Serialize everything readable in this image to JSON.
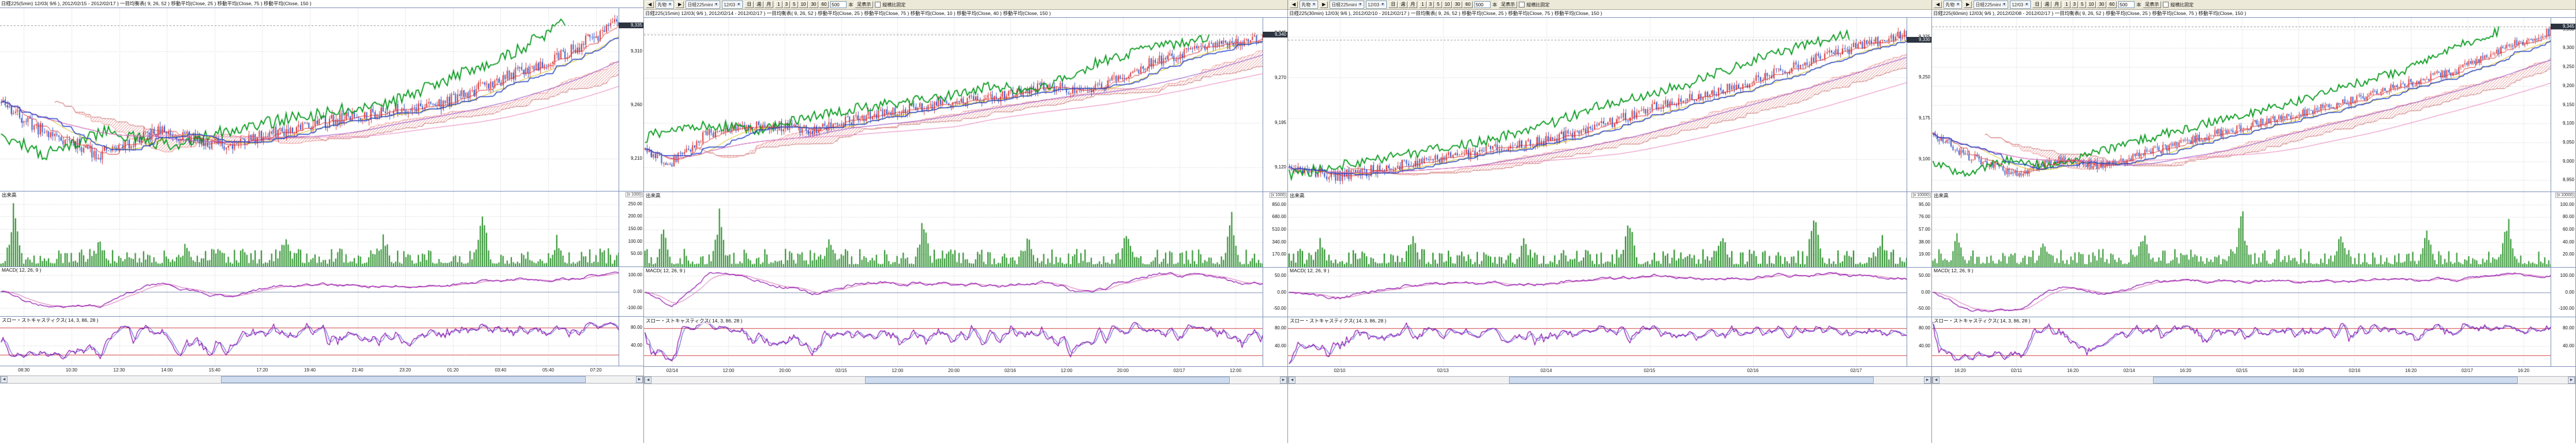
{
  "ui": {
    "dropdown_arrow": "▼",
    "scrollbar_left": "◀",
    "scrollbar_right": "▶"
  },
  "colors": {
    "up": "#d83838",
    "down": "#3858c8",
    "volume": "#1e8a1e",
    "ma25": "#d8b800",
    "ma75": "#9040c0",
    "ma150": "#e87ab8",
    "tenkan": "#e03030",
    "kijun": "#2040c8",
    "chikou": "#009818",
    "cloud": "#e08888",
    "senkou_a": "#f09090",
    "senkou_b": "#c87070",
    "macd": "#8800a8",
    "signal": "#d060b0",
    "stoch_k": "#8800a8",
    "stoch_d": "#3838c8",
    "guide": "#d04040",
    "grid": "#c8c8c8",
    "zero": "#8090b0",
    "last_line": "#909090"
  },
  "toolbar": {
    "prev_button": "◀",
    "category_select": "先物",
    "next_button": "▶",
    "instrument_select": "日経225mini",
    "contract_select": "12/03",
    "period_buttons": [
      "日",
      "週",
      "月"
    ],
    "minute_buttons": [
      "1",
      "3",
      "5",
      "10",
      "30",
      "60"
    ],
    "bars_count": "500",
    "bars_suffix": "本",
    "display_button": "足表示",
    "aspect_label": "縦横比固定"
  },
  "panels": [
    {
      "show_toolbar": false,
      "legend": "日経225(5min) 12/03( 9/6 ), 2012/02/15 - 2012/02/17 )  一目均衡表( 9, 26, 52 )  移動平均(Close, 25 )  移動平均(Close, 75 )  移動平均(Close, 150 )",
      "pane_labels": {
        "volume": "出来高",
        "macd": "MACD( 12, 26, 9 )",
        "stoch": "スロー・ストキャスティクス( 14, 3, 86, 28 )"
      },
      "chart_data": {
        "type": "candlestick",
        "bars": 300,
        "seed": 11,
        "noise": 6,
        "price_keyframes": [
          [
            0,
            9262
          ],
          [
            0.06,
            9238
          ],
          [
            0.16,
            9214
          ],
          [
            0.26,
            9236
          ],
          [
            0.36,
            9222
          ],
          [
            0.48,
            9240
          ],
          [
            0.6,
            9252
          ],
          [
            0.72,
            9262
          ],
          [
            0.82,
            9286
          ],
          [
            0.92,
            9310
          ],
          [
            1,
            9336
          ]
        ],
        "price_axis": {
          "min": 9180,
          "max": 9350,
          "ticks": [
            {
              "v": 9210,
              "label": "9,210"
            },
            {
              "v": 9260,
              "label": "9,260"
            },
            {
              "v": 9310,
              "label": "9,310"
            }
          ]
        },
        "last_price_label": "9,335",
        "volume_axis": {
          "labels": [
            "250.00",
            "200.00",
            "150.00",
            "100.00",
            "50.00"
          ],
          "unit": "(x 1000)"
        },
        "volume_spikes": [
          [
            0.02,
            0.92
          ],
          [
            0.16,
            0.45
          ],
          [
            0.3,
            0.4
          ],
          [
            0.46,
            0.55
          ],
          [
            0.62,
            0.5
          ],
          [
            0.78,
            0.88
          ],
          [
            0.9,
            0.5
          ]
        ],
        "macd_axis": {
          "labels": [
            "100.00",
            "0.00",
            "-100.00"
          ],
          "tick": 100
        },
        "stoch_axis": {
          "ticks": [
            80,
            40
          ],
          "labels": [
            "80.00",
            "40.00"
          ],
          "guides": [
            80,
            20
          ]
        },
        "x_labels": [
          "08:30",
          "10:30",
          "12:30",
          "14:00",
          "15:40",
          "17:20",
          "19:40",
          "21:40",
          "23:20",
          "01:20",
          "03:40",
          "05:40",
          "07:20"
        ]
      }
    },
    {
      "show_toolbar": true,
      "legend": "日経225(15min) 12/03( 9/6 ), 2012/02/14 - 2012/02/17 )  一目均衡表( 9, 26, 52 )  移動平均(Close, 25 )  移動平均(Close, 75 )  移動平均(Close, 10 )  移動平均(Close, 40 )  移動平均(Close, 150 )",
      "pane_labels": {
        "volume": "出来高",
        "macd": "MACD( 12, 26, 9 )",
        "stoch": "スロー・ストキャスティクス( 14, 3, 86, 28 )"
      },
      "chart_data": {
        "type": "candlestick",
        "bars": 300,
        "seed": 22,
        "noise": 9,
        "price_keyframes": [
          [
            0,
            9150
          ],
          [
            0.04,
            9128
          ],
          [
            0.1,
            9176
          ],
          [
            0.18,
            9192
          ],
          [
            0.27,
            9184
          ],
          [
            0.36,
            9206
          ],
          [
            0.46,
            9224
          ],
          [
            0.56,
            9236
          ],
          [
            0.64,
            9256
          ],
          [
            0.72,
            9248
          ],
          [
            0.82,
            9296
          ],
          [
            0.9,
            9318
          ],
          [
            1,
            9338
          ]
        ],
        "price_axis": {
          "min": 9080,
          "max": 9370,
          "ticks": [
            {
              "v": 9120,
              "label": "9,120"
            },
            {
              "v": 9195,
              "label": "9,195"
            },
            {
              "v": 9270,
              "label": "9,270"
            },
            {
              "v": 9345,
              "label": "9,345"
            }
          ]
        },
        "last_price_label": "9,340",
        "volume_axis": {
          "labels": [
            "850.00",
            "680.00",
            "510.00",
            "340.00",
            "170.00"
          ],
          "unit": "(x 1000)"
        },
        "volume_spikes": [
          [
            0.03,
            0.6
          ],
          [
            0.12,
            0.9
          ],
          [
            0.3,
            0.5
          ],
          [
            0.45,
            0.75
          ],
          [
            0.62,
            0.55
          ],
          [
            0.78,
            0.6
          ],
          [
            0.95,
            0.8
          ]
        ],
        "macd_axis": {
          "labels": [
            "50.00",
            "0.00",
            "-50.00"
          ],
          "tick": 50
        },
        "stoch_axis": {
          "ticks": [
            80,
            40
          ],
          "labels": [
            "80.00",
            "40.00"
          ],
          "guides": [
            80,
            20
          ]
        },
        "x_labels": [
          "02/14",
          "12:00",
          "20:00",
          "02/15",
          "12:00",
          "20:00",
          "02/16",
          "12:00",
          "20:00",
          "02/17",
          "12:00"
        ]
      }
    },
    {
      "show_toolbar": true,
      "legend": "日経225(30min) 12/03( 9/6 ), 2012/02/10 - 2012/02/17 )  一目均衡表( 9, 26, 52 )  移動平均(Close, 25 )  移動平均(Close, 75 )  移動平均(Close, 150 )",
      "pane_labels": {
        "volume": "出来高",
        "macd": "MACD( 12, 26, 9 )",
        "stoch": "スロー・ストキャスティクス( 14, 3, 86, 28 )"
      },
      "chart_data": {
        "type": "candlestick",
        "bars": 280,
        "seed": 33,
        "noise": 10,
        "price_keyframes": [
          [
            0,
            9082
          ],
          [
            0.08,
            9068
          ],
          [
            0.18,
            9088
          ],
          [
            0.28,
            9108
          ],
          [
            0.38,
            9126
          ],
          [
            0.48,
            9150
          ],
          [
            0.58,
            9192
          ],
          [
            0.66,
            9214
          ],
          [
            0.76,
            9246
          ],
          [
            0.86,
            9288
          ],
          [
            0.94,
            9312
          ],
          [
            1,
            9330
          ]
        ],
        "price_axis": {
          "min": 9040,
          "max": 9360,
          "ticks": [
            {
              "v": 9100,
              "label": "9,100"
            },
            {
              "v": 9175,
              "label": "9,175"
            },
            {
              "v": 9250,
              "label": "9,250"
            },
            {
              "v": 9325,
              "label": "9,325"
            }
          ]
        },
        "last_price_label": "9,330",
        "volume_axis": {
          "labels": [
            "95.00",
            "76.00",
            "57.00",
            "38.00",
            "19.00"
          ],
          "unit": "(x 10000)"
        },
        "volume_spikes": [
          [
            0.05,
            0.5
          ],
          [
            0.2,
            0.6
          ],
          [
            0.38,
            0.45
          ],
          [
            0.55,
            0.8
          ],
          [
            0.7,
            0.6
          ],
          [
            0.85,
            0.9
          ],
          [
            0.96,
            0.5
          ]
        ],
        "macd_axis": {
          "labels": [
            "50.00",
            "0.00",
            "-50.00"
          ],
          "tick": 50
        },
        "stoch_axis": {
          "ticks": [
            80,
            40
          ],
          "labels": [
            "80.00",
            "40.00"
          ],
          "guides": [
            80,
            20
          ]
        },
        "x_labels": [
          "02/10",
          "02/13",
          "02/14",
          "02/15",
          "02/16",
          "02/17"
        ]
      }
    },
    {
      "show_toolbar": true,
      "legend": "日経225(60min) 12/03( 9/6 ), 2012/02/08 - 2012/02/17 )  一目均衡表( 9, 26, 52 )  移動平均(Close, 25 )  移動平均(Close, 75 )  移動平均(Close, 150 )",
      "pane_labels": {
        "volume": "出来高",
        "macd": "MACD( 12, 26, 9 )",
        "stoch": "スロー・ストキャスティクス( 14, 3, 86, 28 )"
      },
      "chart_data": {
        "type": "candlestick",
        "bars": 310,
        "seed": 44,
        "noise": 12,
        "price_keyframes": [
          [
            0,
            9068
          ],
          [
            0.06,
            9012
          ],
          [
            0.13,
            8966
          ],
          [
            0.2,
            9002
          ],
          [
            0.28,
            8988
          ],
          [
            0.38,
            9038
          ],
          [
            0.48,
            9082
          ],
          [
            0.58,
            9122
          ],
          [
            0.68,
            9162
          ],
          [
            0.76,
            9202
          ],
          [
            0.85,
            9242
          ],
          [
            0.93,
            9302
          ],
          [
            1,
            9346
          ]
        ],
        "price_axis": {
          "min": 8920,
          "max": 9380,
          "ticks": [
            {
              "v": 8950,
              "label": "8,950"
            },
            {
              "v": 9000,
              "label": "9,000"
            },
            {
              "v": 9050,
              "label": "9,050"
            },
            {
              "v": 9100,
              "label": "9,100"
            },
            {
              "v": 9150,
              "label": "9,150"
            },
            {
              "v": 9200,
              "label": "9,200"
            },
            {
              "v": 9250,
              "label": "9,250"
            },
            {
              "v": 9300,
              "label": "9,300"
            },
            {
              "v": 9350,
              "label": "9,350"
            }
          ]
        },
        "last_price_label": "9,345",
        "volume_axis": {
          "labels": [
            "100.00",
            "80.00",
            "60.00",
            "40.00",
            "20.00"
          ],
          "unit": "(x 10000)"
        },
        "volume_spikes": [
          [
            0.04,
            0.55
          ],
          [
            0.18,
            0.5
          ],
          [
            0.34,
            0.6
          ],
          [
            0.5,
            0.9
          ],
          [
            0.66,
            0.55
          ],
          [
            0.8,
            0.7
          ],
          [
            0.93,
            0.85
          ]
        ],
        "macd_axis": {
          "labels": [
            "100.00",
            "0.00",
            "-100.00"
          ],
          "tick": 100
        },
        "stoch_axis": {
          "ticks": [
            80,
            40
          ],
          "labels": [
            "80.00",
            "40.00"
          ],
          "guides": [
            80,
            20
          ]
        },
        "x_labels": [
          "16:20",
          "02/11",
          "16:20",
          "02/14",
          "16:20",
          "02/15",
          "16:20",
          "02/16",
          "16:20",
          "02/17",
          "16:20"
        ]
      }
    }
  ]
}
